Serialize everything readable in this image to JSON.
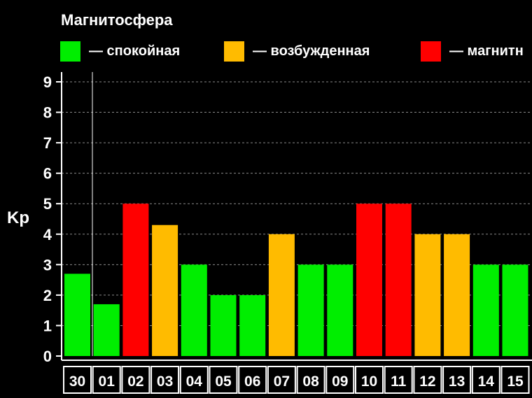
{
  "chart_data": {
    "type": "bar",
    "title": "Магнитосфера",
    "ylabel": "Kp",
    "xlabel": "",
    "ylim": [
      0,
      9
    ],
    "yticks": [
      "0",
      "1",
      "2",
      "3",
      "4",
      "5",
      "6",
      "7",
      "8",
      "9"
    ],
    "categories": [
      "30",
      "01",
      "02",
      "03",
      "04",
      "05",
      "06",
      "07",
      "08",
      "09",
      "10",
      "11",
      "12",
      "13",
      "14",
      "15"
    ],
    "values": [
      2.7,
      1.7,
      5,
      4.3,
      3,
      2,
      2,
      4,
      3,
      3,
      5,
      5,
      4,
      4,
      3,
      3
    ],
    "value_levels": [
      "calm",
      "calm",
      "storm",
      "excited",
      "calm",
      "calm",
      "calm",
      "excited",
      "calm",
      "calm",
      "storm",
      "storm",
      "excited",
      "excited",
      "calm",
      "calm"
    ],
    "legend": [
      {
        "key": "calm",
        "label": "— спокойная",
        "color": "#00ee00"
      },
      {
        "key": "excited",
        "label": "— возбужденная",
        "color": "#ffbb00"
      },
      {
        "key": "storm",
        "label": "— магнитн",
        "color": "#ff0000"
      }
    ],
    "grid": true,
    "legend_position": "top"
  }
}
